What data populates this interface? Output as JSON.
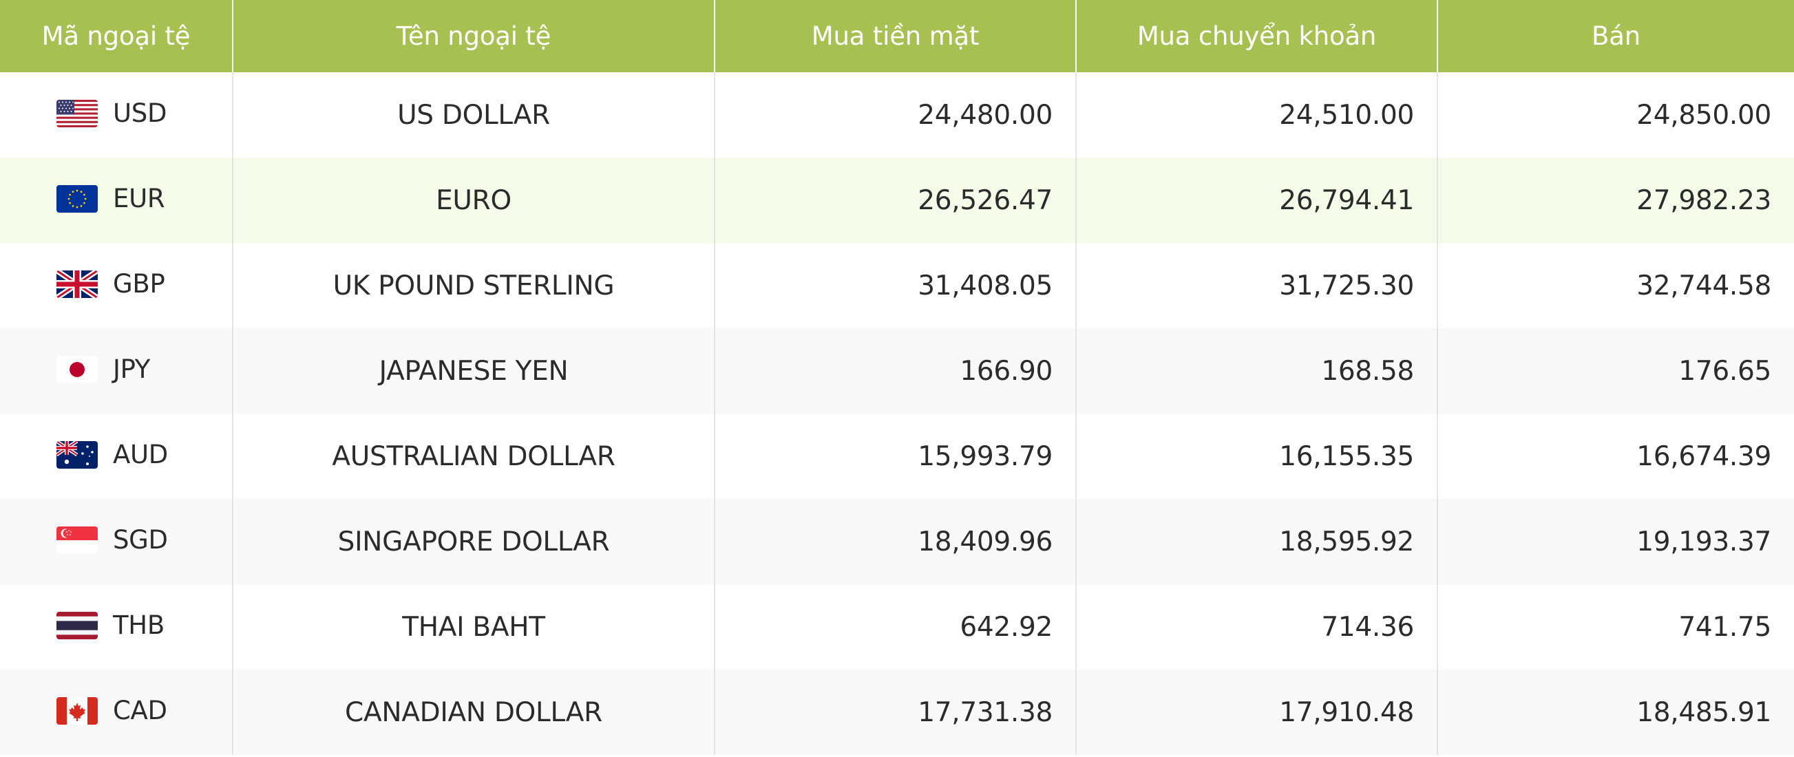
{
  "headers": {
    "code": "Mã ngoại tệ",
    "name": "Tên ngoại tệ",
    "buy_cash": "Mua tiền mặt",
    "buy_transfer": "Mua chuyển khoản",
    "sell": "Bán"
  },
  "colors": {
    "header_bg": "#a6c152",
    "header_text": "#ffffff",
    "highlight_row": "#f5fbe9",
    "alt_row": "#f8f8f8"
  },
  "rows": [
    {
      "code": "USD",
      "name": "US DOLLAR",
      "buy_cash": "24,480.00",
      "buy_transfer": "24,510.00",
      "sell": "24,850.00",
      "flag_icon": "us-flag-icon"
    },
    {
      "code": "EUR",
      "name": "EURO",
      "buy_cash": "26,526.47",
      "buy_transfer": "26,794.41",
      "sell": "27,982.23",
      "flag_icon": "eu-flag-icon"
    },
    {
      "code": "GBP",
      "name": "UK POUND STERLING",
      "buy_cash": "31,408.05",
      "buy_transfer": "31,725.30",
      "sell": "32,744.58",
      "flag_icon": "uk-flag-icon"
    },
    {
      "code": "JPY",
      "name": "JAPANESE YEN",
      "buy_cash": "166.90",
      "buy_transfer": "168.58",
      "sell": "176.65",
      "flag_icon": "japan-flag-icon"
    },
    {
      "code": "AUD",
      "name": "AUSTRALIAN DOLLAR",
      "buy_cash": "15,993.79",
      "buy_transfer": "16,155.35",
      "sell": "16,674.39",
      "flag_icon": "australia-flag-icon"
    },
    {
      "code": "SGD",
      "name": "SINGAPORE DOLLAR",
      "buy_cash": "18,409.96",
      "buy_transfer": "18,595.92",
      "sell": "19,193.37",
      "flag_icon": "singapore-flag-icon"
    },
    {
      "code": "THB",
      "name": "THAI BAHT",
      "buy_cash": "642.92",
      "buy_transfer": "714.36",
      "sell": "741.75",
      "flag_icon": "thailand-flag-icon"
    },
    {
      "code": "CAD",
      "name": "CANADIAN DOLLAR",
      "buy_cash": "17,731.38",
      "buy_transfer": "17,910.48",
      "sell": "18,485.91",
      "flag_icon": "canada-flag-icon"
    }
  ]
}
